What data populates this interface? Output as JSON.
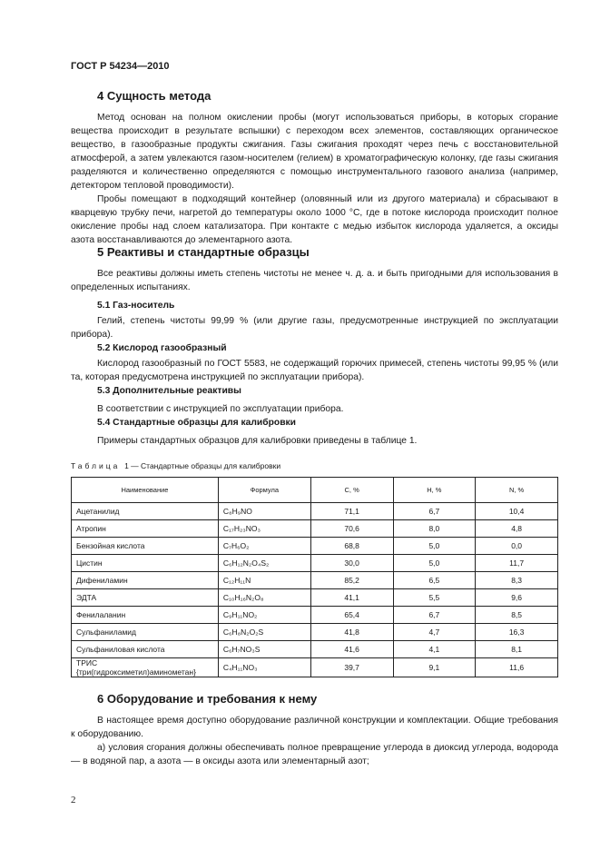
{
  "header": "ГОСТ Р 54234—2010",
  "s4": {
    "title": "4  Сущность метода",
    "p": [
      "Метод основан на полном окислении пробы (могут использоваться приборы, в которых сгорание вещества происходит в результате вспышки) с переходом всех элементов, составляющих органическое вещество, в газообразные продукты сжигания. Газы сжигания проходят через печь с восстановительной атмосферой, а затем увлекаются газом-носителем (гелием) в хроматографическую колонку, где газы сжигания разделяются и количественно определяются с помощью инструментального газового анализа (например, детектором тепловой проводимости).",
      "Пробы помещают в подходящий контейнер (оловянный или из другого материала) и сбрасывают в кварцевую трубку печи, нагретой до температуры около 1000 °С, где в потоке кислорода происходит полное окисление пробы над слоем катализатора. При контакте с медью избыток кислорода удаляется, а оксиды азота восстанавливаются до элементарного азота."
    ]
  },
  "s5": {
    "title": "5  Реактивы и стандартные образцы",
    "p": "Все реактивы должны иметь степень чистоты не менее ч. д. а. и быть пригодными для использования в определенных испытаниях.",
    "s51": {
      "title": "5.1  Газ-носитель",
      "p": "Гелий, степень чистоты 99,99 % (или другие газы, предусмотренные инструкцией по эксплуатации прибора)."
    },
    "s52": {
      "title": "5.2  Кислород газообразный",
      "p": "Кислород газообразный по ГОСТ 5583, не содержащий горючих примесей, степень чистоты 99,95 % (или та, которая предусмотрена инструкцией по эксплуатации прибора)."
    },
    "s53": {
      "title": "5.3  Дополнительные реактивы",
      "p": "В соответствии с инструкцией по эксплуатации прибора."
    },
    "s54": {
      "title": "5.4  Стандартные образцы для калибровки",
      "p": "Примеры стандартных образцов для калибровки приведены в таблице 1."
    }
  },
  "table": {
    "label": "Таблица",
    "caption": "1 — Стандартные образцы для калибровки",
    "headers": [
      "Наименование",
      "Формула",
      "С, %",
      "Н, %",
      "N, %"
    ],
    "rows": [
      [
        "Ацетанилид",
        "C₈H₉NO",
        "71,1",
        "6,7",
        "10,4"
      ],
      [
        "Атропин",
        "C₁₇H₂₃NO₃",
        "70,6",
        "8,0",
        "4,8"
      ],
      [
        "Бензойная кислота",
        "C₇H₆O₂",
        "68,8",
        "5,0",
        "0,0"
      ],
      [
        "Цистин",
        "C₆H₁₂N₂O₄S₂",
        "30,0",
        "5,0",
        "11,7"
      ],
      [
        "Дифениламин",
        "C₁₂H₁₁N",
        "85,2",
        "6,5",
        "8,3"
      ],
      [
        "ЭДТА",
        "C₁₀H₁₆N₂O₈",
        "41,1",
        "5,5",
        "9,6"
      ],
      [
        "Фенилаланин",
        "C₉H₁₁NO₂",
        "65,4",
        "6,7",
        "8,5"
      ],
      [
        "Сульфаниламид",
        "C₆H₈N₂O₂S",
        "41,8",
        "4,7",
        "16,3"
      ],
      [
        "Сульфаниловая кислота",
        "C₆H₇NO₃S",
        "41,6",
        "4,1",
        "8,1"
      ],
      [
        "ТРИС {три(гидроксиметил)аминометан}",
        "C₄H₁₁NO₃",
        "39,7",
        "9,1",
        "11,6"
      ]
    ]
  },
  "s6": {
    "title": "6  Оборудование и требования к нему",
    "p": [
      "В настоящее время доступно оборудование различной конструкции и комплектации. Общие требования к оборудованию.",
      "а) условия сгорания должны обеспечивать полное превращение углерода в диоксид углерода, водорода — в водяной пар, а азота — в оксиды азота или элементарный азот;"
    ]
  },
  "page_number": "2"
}
